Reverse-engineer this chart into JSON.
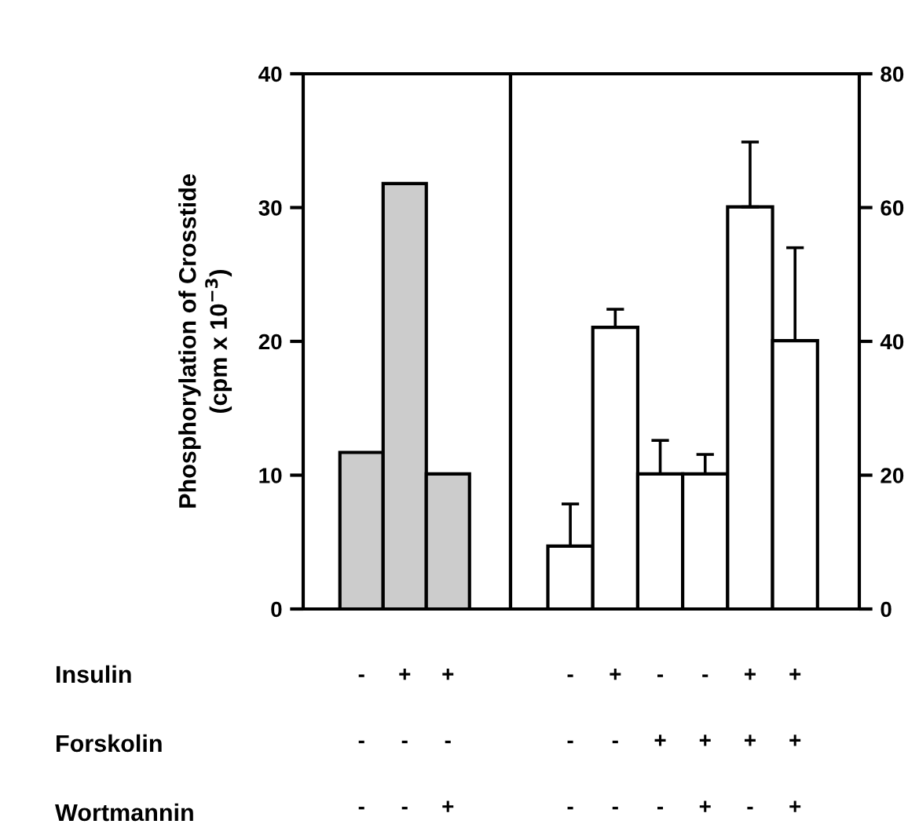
{
  "chart_data": [
    {
      "type": "bar",
      "ylabel": "Phosphorylation of Crosstide\n(cpm x 10$^{−3}$)",
      "categories": [
        "-\n-\n-",
        "+\n-\n-",
        "+\n-\n+"
      ],
      "series": [
        {
          "color": "#cccccc",
          "values": [
            11.7,
            31.8,
            10.1
          ]
        }
      ],
      "ylim": [
        0,
        40
      ],
      "yticks": [
        0,
        10,
        20,
        30,
        40
      ],
      "annotations": [
        "Insulin",
        "Forskolin",
        "Wortmannin"
      ]
    },
    {
      "type": "bar",
      "categories": [
        "-\n-\n-",
        "+\n-\n-",
        "-\n+\n-",
        "-\n+\n+",
        "+\n+\n-",
        "+\n+\n+"
      ],
      "series": [
        {
          "color": "#ffffff",
          "values": [
            9.4,
            42.1,
            20.2,
            20.2,
            60.1,
            40.1
          ],
          "errors": [
            [
              9.4,
              15.7
            ],
            [
              42.1,
              44.8
            ],
            [
              20.2,
              25.2
            ],
            [
              20.2,
              23.1
            ],
            [
              60.1,
              69.8
            ],
            [
              40.1,
              54.0
            ]
          ]
        }
      ],
      "ylim": [
        0,
        80
      ],
      "yticks": [
        0,
        20,
        40,
        60,
        80
      ]
    }
  ]
}
